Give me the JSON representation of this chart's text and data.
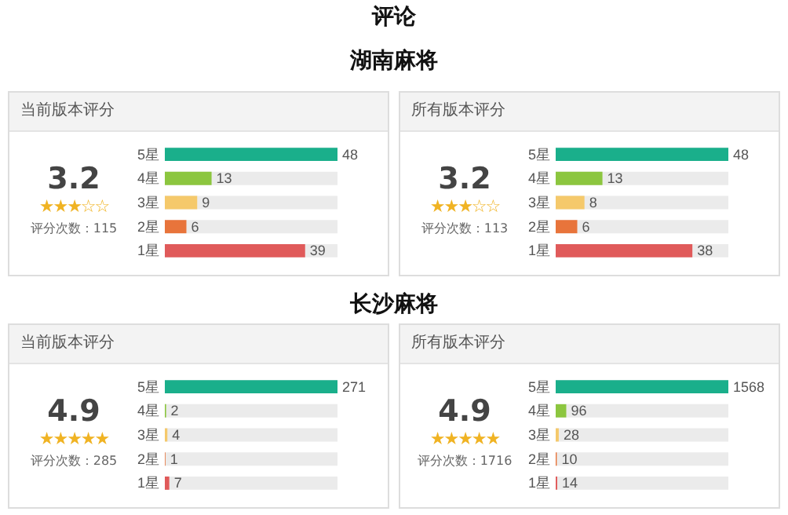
{
  "chart_data": [
    {
      "type": "bar",
      "orientation": "horizontal",
      "title": "当前版本评分",
      "annotations": [
        "评论",
        "湖南麻将",
        "3.2",
        "★★★☆☆",
        "评分次数：115"
      ],
      "categories": [
        "5星",
        "4星",
        "3星",
        "2星",
        "1星"
      ],
      "values": [
        48,
        13,
        9,
        6,
        39
      ],
      "colors": [
        "#1aaf8b",
        "#8cc63f",
        "#f5c96b",
        "#e8743b",
        "#e05a5a"
      ],
      "data_labels": true,
      "tick_labels": "y"
    },
    {
      "type": "bar",
      "orientation": "horizontal",
      "title": "所有版本评分",
      "annotations": [
        "3.2",
        "★★★☆☆",
        "评分次数：113"
      ],
      "categories": [
        "5星",
        "4星",
        "3星",
        "2星",
        "1星"
      ],
      "values": [
        48,
        13,
        8,
        6,
        38
      ],
      "colors": [
        "#1aaf8b",
        "#8cc63f",
        "#f5c96b",
        "#e8743b",
        "#e05a5a"
      ],
      "data_labels": true,
      "tick_labels": "y"
    },
    {
      "type": "bar",
      "orientation": "horizontal",
      "title": "当前版本评分",
      "annotations": [
        "长沙麻将",
        "4.9",
        "★★★★★",
        "评分次数：285"
      ],
      "categories": [
        "5星",
        "4星",
        "3星",
        "2星",
        "1星"
      ],
      "values": [
        271,
        2,
        4,
        1,
        7
      ],
      "colors": [
        "#1aaf8b",
        "#8cc63f",
        "#f5c96b",
        "#e8743b",
        "#e05a5a"
      ],
      "data_labels": true,
      "tick_labels": "y"
    },
    {
      "type": "bar",
      "orientation": "horizontal",
      "title": "所有版本评分",
      "annotations": [
        "4.9",
        "★★★★★",
        "评分次数：1716"
      ],
      "categories": [
        "5星",
        "4星",
        "3星",
        "2星",
        "1星"
      ],
      "values": [
        1568,
        96,
        28,
        10,
        14
      ],
      "colors": [
        "#1aaf8b",
        "#8cc63f",
        "#f5c96b",
        "#e8743b",
        "#e05a5a"
      ],
      "data_labels": true,
      "tick_labels": "y"
    }
  ]
}
